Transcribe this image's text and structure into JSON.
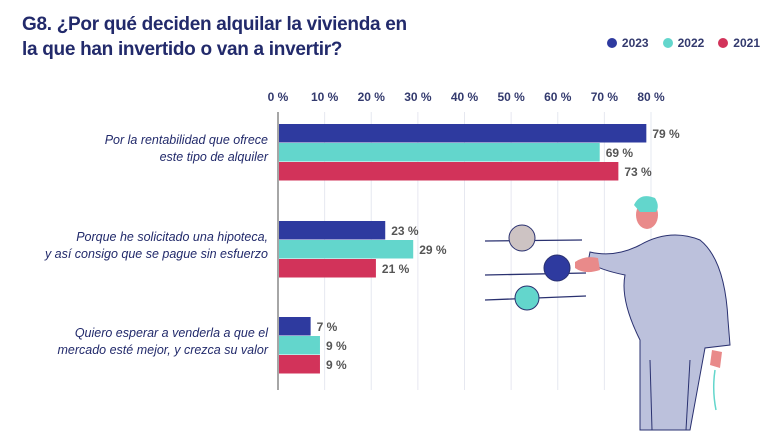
{
  "chart_data": {
    "type": "bar",
    "orientation": "horizontal",
    "title": "G8. ¿Por qué deciden alquilar la vivienda en la que han invertido o van a invertir?",
    "title_lines": [
      "G8. ¿Por qué deciden alquilar la vivienda en",
      "la que han invertido o van a invertir?"
    ],
    "categories": [
      [
        "Por la rentabilidad que ofrece",
        "este tipo de alquiler"
      ],
      [
        "Porque he solicitado una hipoteca,",
        "y así consigo que se pague sin esfuerzo"
      ],
      [
        "Quiero esperar a venderla a que el",
        "mercado esté mejor, y crezca su valor"
      ]
    ],
    "series": [
      {
        "name": "2023",
        "color": "#2e3a9f",
        "values": [
          79,
          23,
          7
        ]
      },
      {
        "name": "2022",
        "color": "#63d6cc",
        "values": [
          69,
          29,
          9
        ]
      },
      {
        "name": "2021",
        "color": "#d2335a",
        "values": [
          73,
          21,
          9
        ]
      }
    ],
    "value_suffix": " %",
    "xticks": [
      "0 %",
      "10 %",
      "20 %",
      "30 %",
      "40 %",
      "50 %",
      "60 %",
      "70 %",
      "80 %"
    ],
    "xlim": [
      0,
      80
    ],
    "grid": true,
    "legend_position": "top-right",
    "xlabel": "",
    "ylabel": ""
  }
}
